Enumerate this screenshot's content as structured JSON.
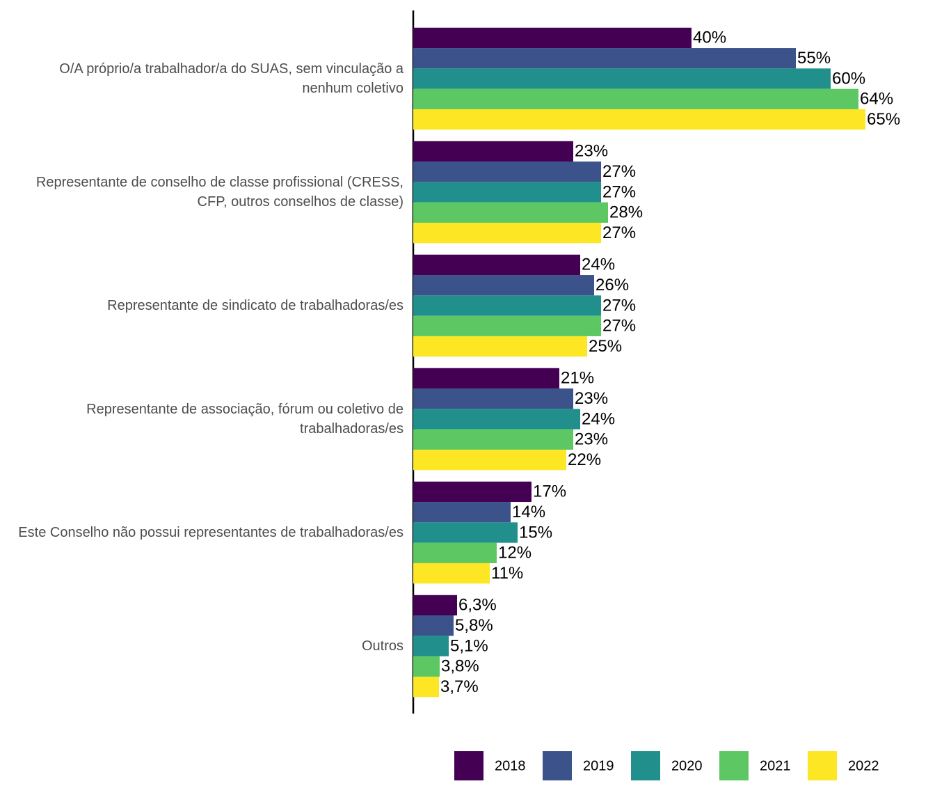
{
  "chart_data": {
    "type": "hbar",
    "categories": [
      "O/A próprio/a trabalhador/a do SUAS, sem vinculação a nenhum coletivo",
      "Representante de conselho de classe profissional (CRESS, CFP, outros conselhos de classe)",
      "Representante de sindicato de trabalhadoras/es",
      "Representante de associação, fórum ou coletivo de trabalhadoras/es",
      "Este Conselho não possui representantes de trabalhadoras/es",
      "Outros"
    ],
    "series": [
      {
        "name": "2018",
        "color": "#440154",
        "values": [
          40,
          23,
          24,
          21,
          17,
          6.3
        ],
        "value_labels": [
          "40%",
          "23%",
          "24%",
          "21%",
          "17%",
          "6,3%"
        ]
      },
      {
        "name": "2019",
        "color": "#3b528b",
        "values": [
          55,
          27,
          26,
          23,
          14,
          5.8
        ],
        "value_labels": [
          "55%",
          "27%",
          "26%",
          "23%",
          "14%",
          "5,8%"
        ]
      },
      {
        "name": "2020",
        "color": "#21908c",
        "values": [
          60,
          27,
          27,
          24,
          15,
          5.1
        ],
        "value_labels": [
          "60%",
          "27%",
          "27%",
          "24%",
          "15%",
          "5,1%"
        ]
      },
      {
        "name": "2021",
        "color": "#5dc863",
        "values": [
          64,
          28,
          27,
          23,
          12,
          3.8
        ],
        "value_labels": [
          "64%",
          "28%",
          "27%",
          "23%",
          "12%",
          "3,8%"
        ]
      },
      {
        "name": "2022",
        "color": "#fde725",
        "values": [
          65,
          27,
          25,
          22,
          11,
          3.7
        ],
        "value_labels": [
          "65%",
          "27%",
          "25%",
          "22%",
          "11%",
          "3,7%"
        ]
      }
    ],
    "legend": "bottom"
  }
}
